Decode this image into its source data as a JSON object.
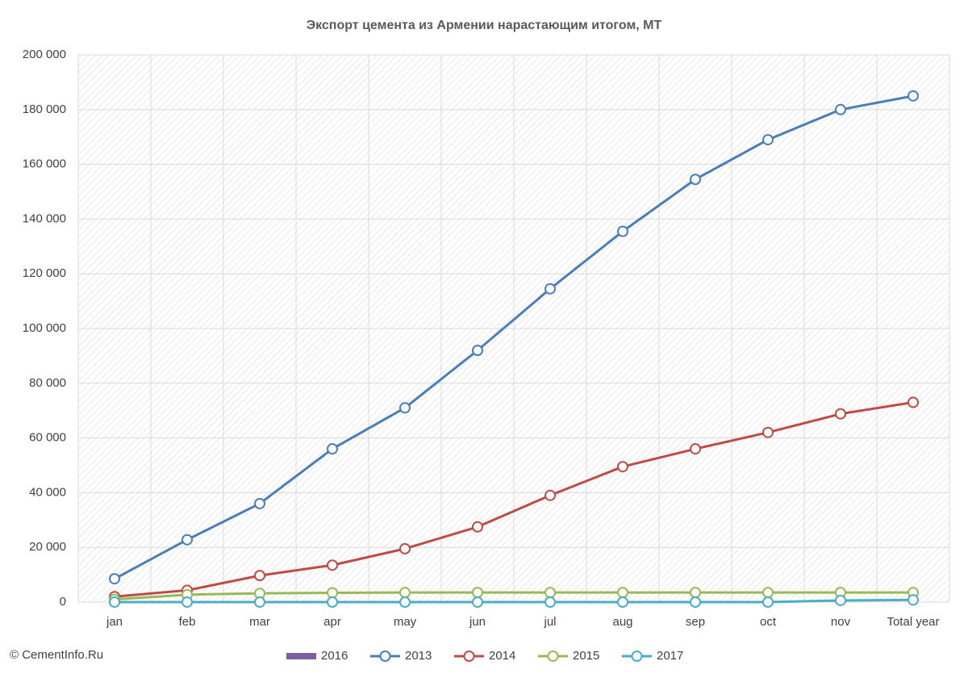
{
  "chart_data": {
    "type": "line",
    "title": "Экспорт цемента из Армении нарастающим итогом, МТ",
    "source": "© CementInfo.Ru",
    "categories": [
      "jan",
      "feb",
      "mar",
      "apr",
      "may",
      "jun",
      "jul",
      "aug",
      "sep",
      "oct",
      "nov",
      "Total year"
    ],
    "series": [
      {
        "name": "2016",
        "type": "bar",
        "color": "#7e5ea0",
        "values": [
          null,
          null,
          null,
          null,
          null,
          null,
          null,
          null,
          null,
          null,
          null,
          null
        ]
      },
      {
        "name": "2013",
        "color": "#4a7ebb",
        "values": [
          8500,
          22800,
          36000,
          56000,
          71000,
          92000,
          114500,
          135500,
          154500,
          169000,
          180000,
          185000
        ]
      },
      {
        "name": "2014",
        "color": "#be4b48",
        "values": [
          2000,
          4300,
          9700,
          13500,
          19500,
          27500,
          39000,
          49500,
          56000,
          62000,
          68800,
          73000
        ]
      },
      {
        "name": "2015",
        "color": "#98b954",
        "values": [
          1000,
          2700,
          3200,
          3400,
          3500,
          3500,
          3500,
          3500,
          3500,
          3500,
          3500,
          3500
        ]
      },
      {
        "name": "2017",
        "color": "#4bacc6",
        "values": [
          0,
          0,
          0,
          0,
          0,
          0,
          0,
          0,
          0,
          0,
          600,
          800
        ]
      }
    ],
    "ylim": [
      0,
      200000
    ],
    "yticks": [
      0,
      {
        "value": 20000,
        "label": "20 000"
      },
      {
        "value": 40000,
        "label": "40 000"
      },
      {
        "value": 60000,
        "label": "60 000"
      },
      {
        "value": 80000,
        "label": "80 000"
      },
      {
        "value": 100000,
        "label": "100 000"
      },
      {
        "value": 120000,
        "label": "120 000"
      },
      {
        "value": 140000,
        "label": "140 000"
      },
      {
        "value": 160000,
        "label": "160 000"
      },
      {
        "value": 180000,
        "label": "180 000"
      },
      {
        "value": 200000,
        "label": "200 000"
      }
    ],
    "grid": true,
    "legend": "bottom"
  }
}
